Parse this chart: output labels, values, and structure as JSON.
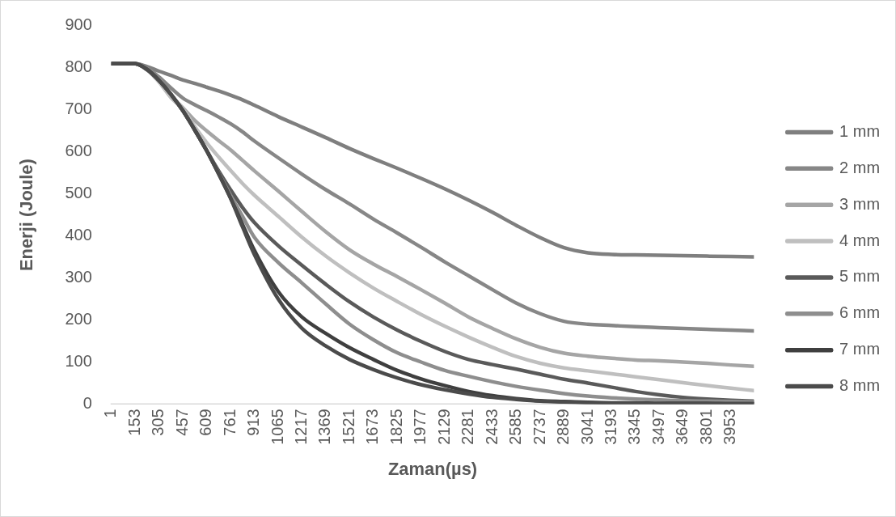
{
  "chart_data": {
    "type": "line",
    "xlabel": "Zaman(µs)",
    "ylabel": "Enerji (Joule)",
    "legend": "right",
    "x": [
      1,
      153,
      229,
      305,
      381,
      457,
      533,
      609,
      685,
      761,
      837,
      913,
      1065,
      1217,
      1369,
      1521,
      1673,
      1825,
      1977,
      2129,
      2281,
      2433,
      2585,
      2737,
      2889,
      3041,
      3193,
      3345,
      3497,
      3649,
      3801,
      3953,
      4100
    ],
    "xlim": [
      1,
      4100
    ],
    "xticks": [
      1,
      153,
      305,
      457,
      609,
      761,
      913,
      1065,
      1217,
      1369,
      1521,
      1673,
      1825,
      1977,
      2129,
      2281,
      2433,
      2585,
      2737,
      2889,
      3041,
      3193,
      3345,
      3497,
      3649,
      3801,
      3953
    ],
    "ylim": [
      0,
      900
    ],
    "yticks": [
      0,
      100,
      200,
      300,
      400,
      500,
      600,
      700,
      800,
      900
    ],
    "series": [
      {
        "name": "1 mm",
        "color": "#7f7f7f",
        "values": [
          810,
          810,
          803,
          792,
          782,
          771,
          763,
          754,
          745,
          735,
          724,
          711,
          684,
          659,
          634,
          608,
          584,
          561,
          537,
          512,
          485,
          456,
          425,
          396,
          372,
          360,
          356,
          355,
          354,
          353,
          352,
          351,
          350
        ]
      },
      {
        "name": "2 mm",
        "color": "#878787",
        "values": [
          810,
          810,
          800,
          778,
          752,
          728,
          712,
          698,
          683,
          667,
          648,
          626,
          586,
          547,
          510,
          476,
          440,
          407,
          373,
          338,
          305,
          272,
          240,
          215,
          197,
          190,
          187,
          184,
          182,
          180,
          178,
          176,
          174
        ]
      },
      {
        "name": "3 mm",
        "color": "#a5a5a5",
        "values": [
          810,
          810,
          795,
          768,
          733,
          705,
          675,
          650,
          627,
          605,
          580,
          555,
          507,
          458,
          410,
          367,
          333,
          303,
          272,
          240,
          207,
          180,
          155,
          135,
          121,
          114,
          109,
          105,
          103,
          100,
          97,
          93,
          90
        ]
      },
      {
        "name": "4 mm",
        "color": "#bfbfbf",
        "values": [
          810,
          810,
          795,
          766,
          729,
          702,
          660,
          622,
          588,
          556,
          525,
          497,
          447,
          397,
          352,
          312,
          276,
          244,
          213,
          185,
          159,
          135,
          113,
          97,
          86,
          79,
          72,
          65,
          58,
          51,
          44,
          38,
          32
        ]
      },
      {
        "name": "5 mm",
        "color": "#5a5a5a",
        "values": [
          810,
          810,
          796,
          770,
          737,
          698,
          652,
          603,
          555,
          510,
          468,
          432,
          377,
          330,
          285,
          243,
          207,
          176,
          149,
          125,
          106,
          94,
          83,
          71,
          59,
          50,
          40,
          30,
          22,
          16,
          12,
          9,
          7
        ]
      },
      {
        "name": "6 mm",
        "color": "#8e8e8e",
        "values": [
          810,
          810,
          796,
          770,
          737,
          698,
          652,
          603,
          550,
          497,
          447,
          397,
          337,
          288,
          238,
          190,
          153,
          122,
          100,
          80,
          66,
          53,
          42,
          33,
          25,
          19,
          15,
          12,
          10,
          8,
          7,
          6,
          5
        ]
      },
      {
        "name": "7 mm",
        "color": "#3f3f3f",
        "values": [
          810,
          810,
          796,
          770,
          737,
          698,
          652,
          603,
          548,
          490,
          428,
          366,
          268,
          207,
          168,
          134,
          106,
          80,
          60,
          44,
          30,
          20,
          13,
          8,
          6,
          4,
          3,
          3,
          2,
          2,
          2,
          1,
          1
        ]
      },
      {
        "name": "8 mm",
        "color": "#4b4b4b",
        "values": [
          810,
          810,
          796,
          770,
          737,
          698,
          652,
          603,
          548,
          490,
          422,
          356,
          250,
          180,
          138,
          106,
          82,
          62,
          46,
          34,
          24,
          16,
          11,
          7,
          5,
          3,
          2,
          2,
          1,
          1,
          1,
          1,
          1
        ]
      }
    ]
  }
}
